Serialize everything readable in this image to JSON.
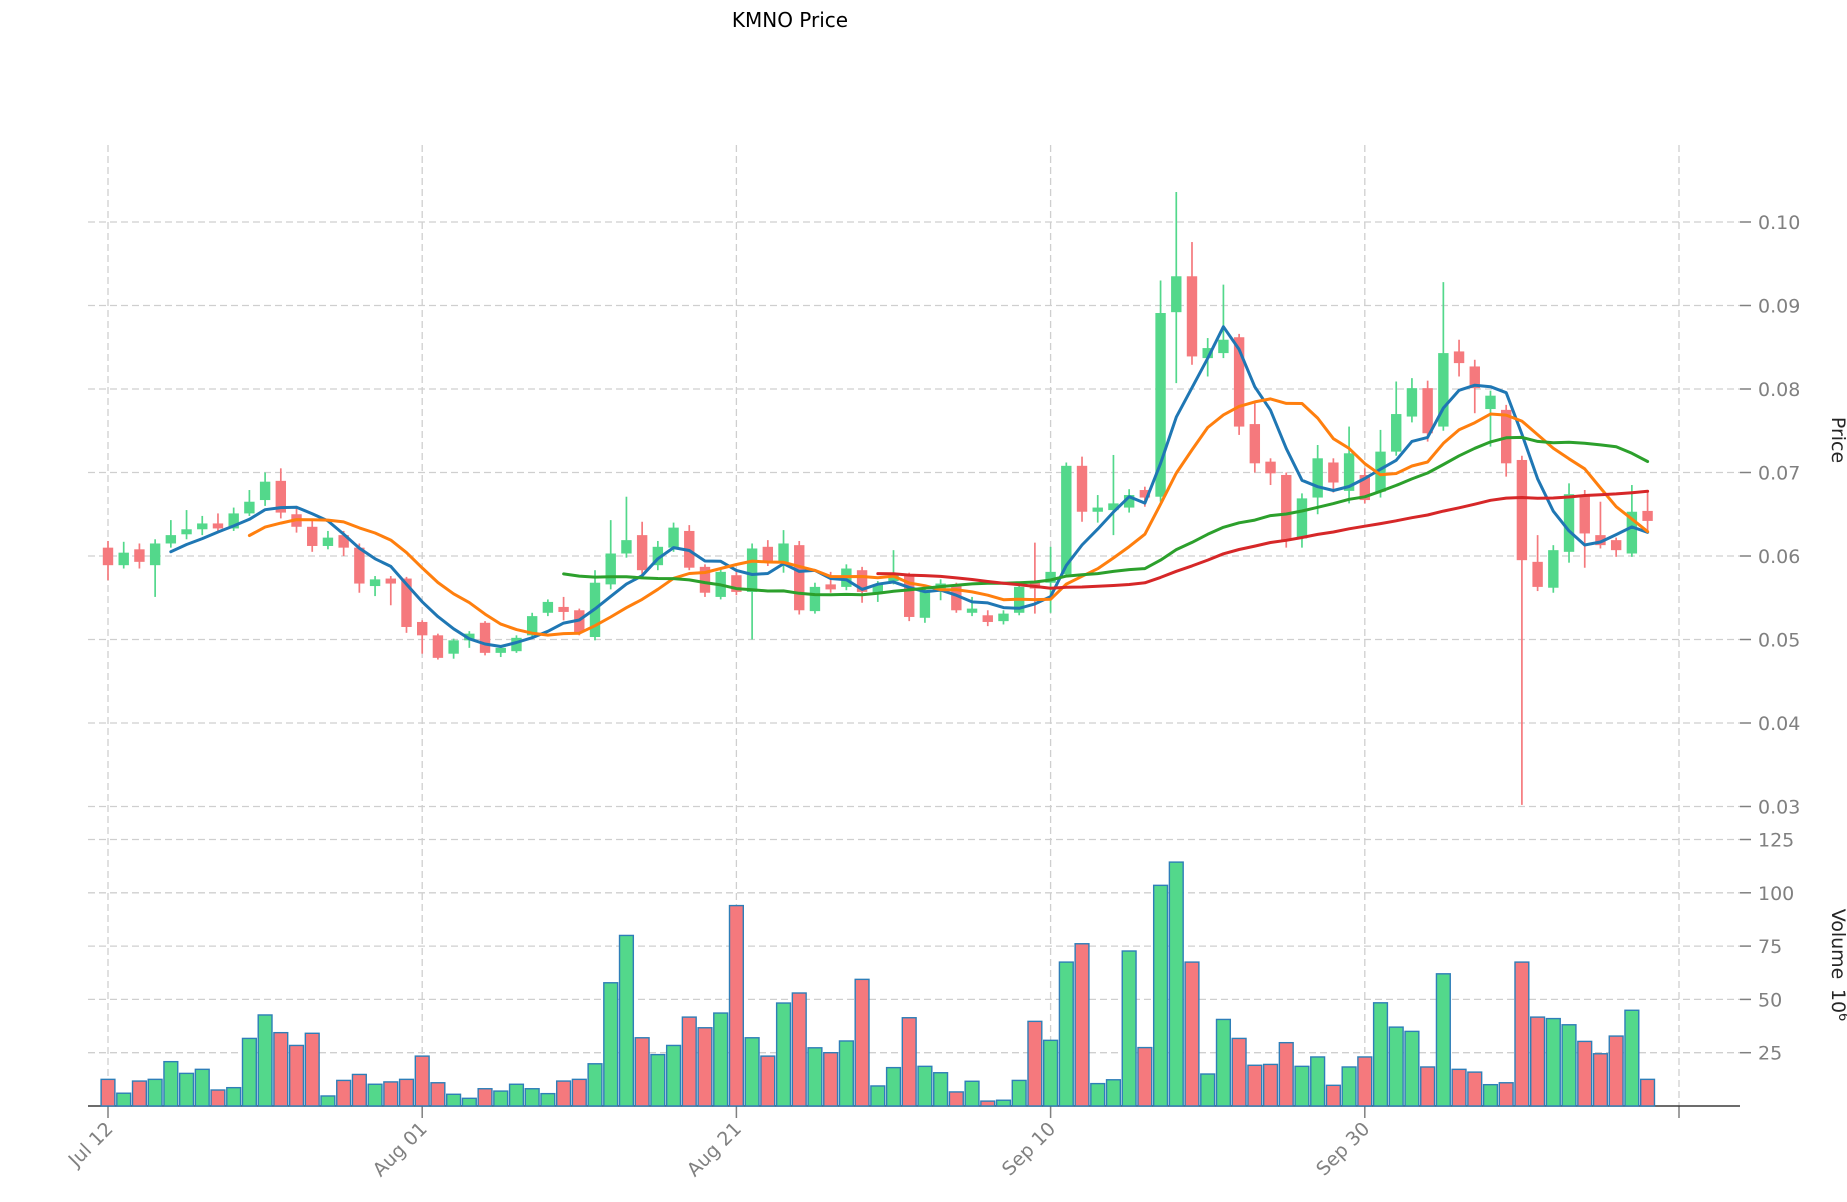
{
  "chart_data": {
    "type": "candlestick+volume",
    "title": "KMNO Price",
    "price_axis_label": "Price",
    "volume_axis_label": "Volume",
    "volume_axis_scale": "10",
    "volume_axis_scale_exp": "6",
    "x_ticks": [
      {
        "index": 0,
        "label": "Jul 12"
      },
      {
        "index": 20,
        "label": "Aug 01"
      },
      {
        "index": 40,
        "label": "Aug 21"
      },
      {
        "index": 60,
        "label": "Sep 10"
      },
      {
        "index": 80,
        "label": "Sep 30"
      },
      {
        "index": 100,
        "label": ""
      }
    ],
    "price_ticks": [
      0.03,
      0.04,
      0.05,
      0.06,
      0.07,
      0.08,
      0.09,
      0.1
    ],
    "volume_ticks": [
      25,
      50,
      75,
      100,
      125
    ],
    "grid": true,
    "legend": "none",
    "price_range": [
      0.0302,
      0.1036
    ],
    "candles": [
      [
        0.061,
        0.0618,
        0.0571,
        0.0589
      ],
      [
        0.0589,
        0.0617,
        0.0585,
        0.0604
      ],
      [
        0.0608,
        0.0615,
        0.0585,
        0.0593
      ],
      [
        0.0589,
        0.062,
        0.0551,
        0.0615
      ],
      [
        0.0615,
        0.0643,
        0.061,
        0.0625
      ],
      [
        0.0626,
        0.0655,
        0.062,
        0.0632
      ],
      [
        0.0632,
        0.0648,
        0.0625,
        0.0639
      ],
      [
        0.0639,
        0.0651,
        0.0628,
        0.0633
      ],
      [
        0.0633,
        0.0658,
        0.063,
        0.0651
      ],
      [
        0.0651,
        0.0679,
        0.0648,
        0.0665
      ],
      [
        0.0667,
        0.07,
        0.066,
        0.0689
      ],
      [
        0.069,
        0.0705,
        0.0645,
        0.0652
      ],
      [
        0.065,
        0.066,
        0.0628,
        0.0635
      ],
      [
        0.0635,
        0.0642,
        0.0605,
        0.0612
      ],
      [
        0.0612,
        0.063,
        0.0608,
        0.0622
      ],
      [
        0.0625,
        0.063,
        0.06,
        0.061
      ],
      [
        0.061,
        0.0615,
        0.0556,
        0.0567
      ],
      [
        0.0564,
        0.0576,
        0.0552,
        0.0572
      ],
      [
        0.0573,
        0.0576,
        0.0541,
        0.0567
      ],
      [
        0.0573,
        0.0575,
        0.0508,
        0.0515
      ],
      [
        0.0521,
        0.0523,
        0.0483,
        0.0505
      ],
      [
        0.0505,
        0.0507,
        0.0476,
        0.0478
      ],
      [
        0.0483,
        0.0501,
        0.0477,
        0.0499
      ],
      [
        0.0499,
        0.051,
        0.049,
        0.0507
      ],
      [
        0.052,
        0.0522,
        0.0481,
        0.0484
      ],
      [
        0.0484,
        0.0493,
        0.0479,
        0.049
      ],
      [
        0.0486,
        0.0505,
        0.0484,
        0.0502
      ],
      [
        0.0505,
        0.0532,
        0.0502,
        0.0528
      ],
      [
        0.0532,
        0.0548,
        0.0528,
        0.0545
      ],
      [
        0.0539,
        0.0551,
        0.0523,
        0.0533
      ],
      [
        0.0535,
        0.0537,
        0.0505,
        0.0509
      ],
      [
        0.0503,
        0.0583,
        0.0499,
        0.0568
      ],
      [
        0.0566,
        0.0643,
        0.056,
        0.0603
      ],
      [
        0.0603,
        0.0671,
        0.0598,
        0.0619
      ],
      [
        0.0625,
        0.0641,
        0.0578,
        0.0583
      ],
      [
        0.0589,
        0.0618,
        0.0583,
        0.0611
      ],
      [
        0.061,
        0.064,
        0.0605,
        0.0634
      ],
      [
        0.063,
        0.0637,
        0.0583,
        0.0586
      ],
      [
        0.0587,
        0.059,
        0.0551,
        0.0556
      ],
      [
        0.0551,
        0.0585,
        0.0548,
        0.0581
      ],
      [
        0.0577,
        0.0582,
        0.0553,
        0.0557
      ],
      [
        0.0557,
        0.0615,
        0.05,
        0.0609
      ],
      [
        0.0611,
        0.0619,
        0.0588,
        0.0592
      ],
      [
        0.0592,
        0.0631,
        0.058,
        0.0615
      ],
      [
        0.0613,
        0.0618,
        0.053,
        0.0535
      ],
      [
        0.0534,
        0.0568,
        0.0531,
        0.0563
      ],
      [
        0.0566,
        0.0581,
        0.0556,
        0.056
      ],
      [
        0.0563,
        0.059,
        0.0559,
        0.0585
      ],
      [
        0.0583,
        0.0587,
        0.0544,
        0.0557
      ],
      [
        0.0556,
        0.057,
        0.0545,
        0.0566
      ],
      [
        0.057,
        0.0607,
        0.0566,
        0.0577
      ],
      [
        0.0577,
        0.058,
        0.0522,
        0.0527
      ],
      [
        0.0526,
        0.0562,
        0.052,
        0.0559
      ],
      [
        0.0561,
        0.0572,
        0.0547,
        0.0567
      ],
      [
        0.0565,
        0.0568,
        0.0532,
        0.0535
      ],
      [
        0.0532,
        0.0551,
        0.0528,
        0.0537
      ],
      [
        0.0529,
        0.0535,
        0.0516,
        0.0521
      ],
      [
        0.0522,
        0.0535,
        0.0518,
        0.0531
      ],
      [
        0.0532,
        0.0567,
        0.0529,
        0.0563
      ],
      [
        0.0568,
        0.0616,
        0.0531,
        0.0561
      ],
      [
        0.0568,
        0.0611,
        0.0532,
        0.0581
      ],
      [
        0.0578,
        0.0712,
        0.0575,
        0.0708
      ],
      [
        0.0708,
        0.0719,
        0.0641,
        0.0653
      ],
      [
        0.0653,
        0.0673,
        0.064,
        0.0658
      ],
      [
        0.0655,
        0.0721,
        0.0625,
        0.0663
      ],
      [
        0.0658,
        0.068,
        0.0652,
        0.0673
      ],
      [
        0.0679,
        0.0683,
        0.0659,
        0.067
      ],
      [
        0.0671,
        0.093,
        0.0665,
        0.0891
      ],
      [
        0.0892,
        0.1036,
        0.0807,
        0.0935
      ],
      [
        0.0935,
        0.0976,
        0.0829,
        0.0839
      ],
      [
        0.0837,
        0.0861,
        0.0815,
        0.0849
      ],
      [
        0.0843,
        0.0925,
        0.0837,
        0.0859
      ],
      [
        0.0862,
        0.0866,
        0.0745,
        0.0755
      ],
      [
        0.0758,
        0.0783,
        0.07,
        0.0711
      ],
      [
        0.0713,
        0.0717,
        0.0685,
        0.0699
      ],
      [
        0.0697,
        0.07,
        0.061,
        0.0619
      ],
      [
        0.0621,
        0.0675,
        0.061,
        0.0669
      ],
      [
        0.067,
        0.0733,
        0.065,
        0.0717
      ],
      [
        0.0712,
        0.0717,
        0.0676,
        0.0688
      ],
      [
        0.0678,
        0.0755,
        0.0663,
        0.0723
      ],
      [
        0.0697,
        0.0705,
        0.0663,
        0.0667
      ],
      [
        0.0677,
        0.0751,
        0.067,
        0.0725
      ],
      [
        0.0725,
        0.0809,
        0.072,
        0.077
      ],
      [
        0.0767,
        0.0813,
        0.076,
        0.0801
      ],
      [
        0.0801,
        0.081,
        0.0737,
        0.0747
      ],
      [
        0.0755,
        0.0928,
        0.075,
        0.0843
      ],
      [
        0.0845,
        0.0859,
        0.0815,
        0.0831
      ],
      [
        0.0827,
        0.0835,
        0.0771,
        0.0801
      ],
      [
        0.0776,
        0.0798,
        0.0731,
        0.0792
      ],
      [
        0.0775,
        0.0781,
        0.0695,
        0.0711
      ],
      [
        0.0715,
        0.072,
        0.0302,
        0.0595
      ],
      [
        0.0593,
        0.0625,
        0.0558,
        0.0563
      ],
      [
        0.0562,
        0.0613,
        0.0556,
        0.0607
      ],
      [
        0.0605,
        0.0687,
        0.0592,
        0.0674
      ],
      [
        0.0673,
        0.0679,
        0.0586,
        0.0627
      ],
      [
        0.0625,
        0.0665,
        0.0609,
        0.0613
      ],
      [
        0.0619,
        0.0622,
        0.0599,
        0.0607
      ],
      [
        0.0603,
        0.0685,
        0.0599,
        0.0653
      ],
      [
        0.0654,
        0.0677,
        0.0631,
        0.0642
      ]
    ],
    "volumes": [
      12.5,
      6,
      11.7,
      12.5,
      20.8,
      15.3,
      17.2,
      7.5,
      8.6,
      31.7,
      42.7,
      34.4,
      28.4,
      34.1,
      4.7,
      12,
      14.8,
      10.2,
      11.3,
      12.5,
      23.4,
      10.9,
      5.5,
      3.6,
      8.1,
      7,
      10.2,
      8.1,
      5.8,
      11.7,
      12.5,
      19.8,
      57.8,
      80,
      32,
      24.1,
      28.4,
      41.7,
      36.7,
      43.6,
      94,
      32,
      23.4,
      48.3,
      53,
      27.3,
      25,
      30.5,
      59.4,
      9.4,
      18,
      41.4,
      18.6,
      15.6,
      6.6,
      11.6,
      2.3,
      2.7,
      12,
      39.7,
      30.8,
      67.5,
      76.1,
      10.5,
      12.3,
      72.7,
      27.4,
      103.5,
      114.4,
      67.5,
      15,
      40.6,
      31.7,
      19.1,
      19.5,
      29.7,
      18.6,
      23,
      9.7,
      18.3,
      23,
      48.4,
      37,
      35,
      18.3,
      62,
      17.2,
      15.9,
      10,
      10.9,
      67.5,
      41.7,
      41,
      38.1,
      30.3,
      24.5,
      32.8,
      44.9,
      12.5
    ],
    "indicators": [
      {
        "name": "MA5",
        "window": 5,
        "color": "#1f77b4"
      },
      {
        "name": "MA10",
        "window": 10,
        "color": "#ff7f0e"
      },
      {
        "name": "MA30",
        "window": 30,
        "color": "#2ca02c"
      },
      {
        "name": "MA50",
        "window": 50,
        "color": "#d62728"
      }
    ],
    "colors": {
      "up": "#53d88b",
      "down": "#f5797d",
      "volume_bar_edge": "#2e7eb8",
      "grid": "#cfcfcf",
      "tick_text": "#808080",
      "axis_text": "#262626",
      "axis_line": "#3c3c3c"
    }
  }
}
